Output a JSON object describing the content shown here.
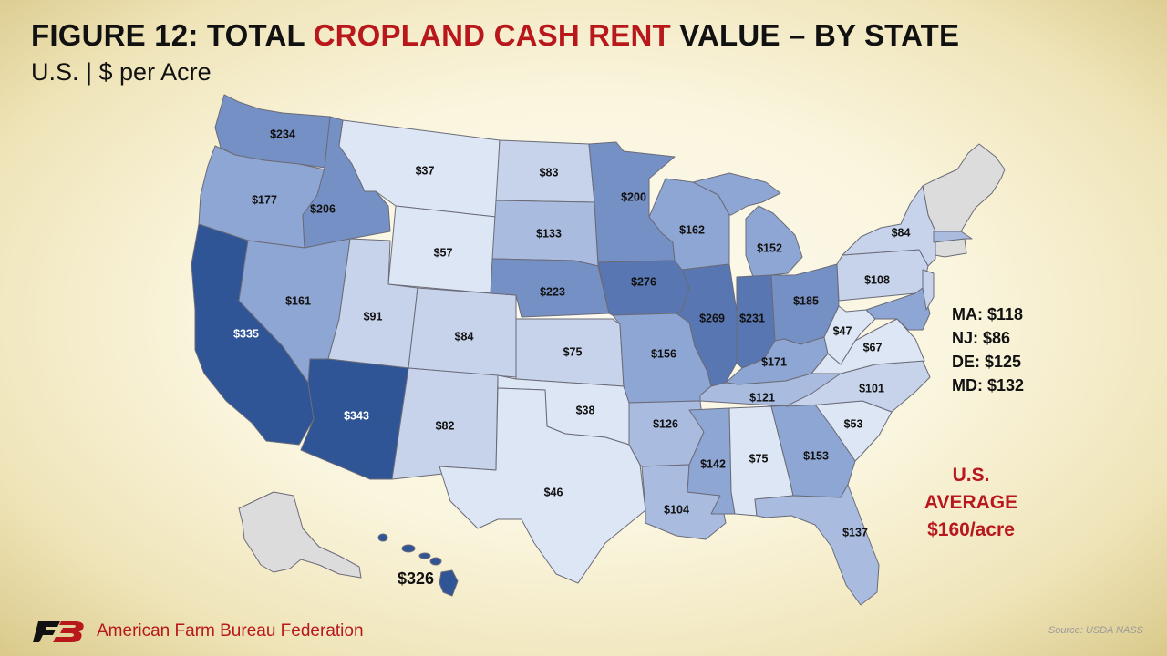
{
  "title": {
    "part1": "FIGURE 12: TOTAL ",
    "highlight": "CROPLAND CASH RENT",
    "part2": " VALUE – BY STATE"
  },
  "subtitle": "U.S. | $ per Acre",
  "colors": {
    "accent_red": "#b8171b",
    "no_data": "#dcdcdc",
    "scale": [
      "#dde6f4",
      "#c6d3ea",
      "#a9bcdf",
      "#8ea6d3",
      "#7590c4",
      "#5776b2",
      "#2f5597"
    ]
  },
  "states": {
    "WA": "$234",
    "OR": "$177",
    "CA": "$335",
    "ID": "$206",
    "NV": "$161",
    "MT": "$37",
    "WY": "$57",
    "UT": "$91",
    "AZ": "$343",
    "CO": "$84",
    "NM": "$82",
    "ND": "$83",
    "SD": "$133",
    "NE": "$223",
    "KS": "$75",
    "OK": "$38",
    "TX": "$46",
    "MN": "$200",
    "IA": "$276",
    "MO": "$156",
    "AR": "$126",
    "LA": "$104",
    "WI": "$162",
    "IL": "$269",
    "MI": "$152",
    "IN": "$231",
    "OH": "$185",
    "KY": "$171",
    "TN": "$121",
    "MS": "$142",
    "AL": "$75",
    "GA": "$153",
    "FL": "$137",
    "SC": "$53",
    "NC": "$101",
    "VA": "$67",
    "WV": "$47",
    "PA": "$108",
    "NY": "$84",
    "HI": "$326"
  },
  "east_legend": [
    "MA: $118",
    "NJ: $86",
    "DE: $125",
    "MD: $132"
  ],
  "us_average": {
    "line1": "U.S.",
    "line2": "AVERAGE",
    "line3": "$160/acre"
  },
  "footer": {
    "organization": "American Farm Bureau Federation",
    "source": "Source: USDA NASS"
  }
}
